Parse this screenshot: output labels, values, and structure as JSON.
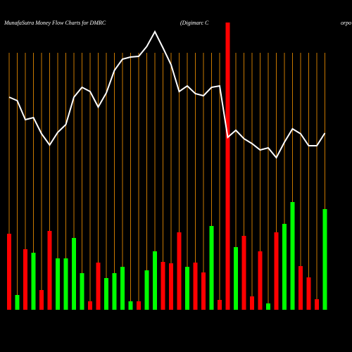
{
  "chart_data": {
    "type": "bar",
    "title": "MunafaSutra  Money Flow  Charts for DMRC",
    "subtitle": [
      "(Digimarc C",
      "orpo"
    ],
    "ylim": [
      0,
      440
    ],
    "grid_color": "#c87800",
    "bars": {
      "values": [
        108,
        21,
        86,
        81,
        28,
        112,
        73,
        73,
        102,
        52,
        12,
        67,
        45,
        52,
        61,
        12,
        12,
        56,
        83,
        68,
        66,
        110,
        61,
        67,
        53,
        119,
        14,
        408,
        89,
        105,
        19,
        83,
        9,
        110,
        122,
        153,
        62,
        46,
        15,
        143
      ],
      "colors": [
        "#ff0000",
        "#00ff00",
        "#ff0000",
        "#00ff00",
        "#ff0000",
        "#ff0000",
        "#00ff00",
        "#00ff00",
        "#00ff00",
        "#00ff00",
        "#ff0000",
        "#ff0000",
        "#00ff00",
        "#00ff00",
        "#00ff00",
        "#00ff00",
        "#ff0000",
        "#00ff00",
        "#00ff00",
        "#ff0000",
        "#ff0000",
        "#ff0000",
        "#00ff00",
        "#ff0000",
        "#ff0000",
        "#00ff00",
        "#ff0000",
        "#ff0000",
        "#00ff00",
        "#ff0000",
        "#ff0000",
        "#ff0000",
        "#00ff00",
        "#ff0000",
        "#00ff00",
        "#00ff00",
        "#ff0000",
        "#ff0000",
        "#ff0000",
        "#00ff00"
      ]
    },
    "line": {
      "color": "#ffffff",
      "values": [
        302,
        297,
        270,
        273,
        250,
        234,
        252,
        263,
        302,
        316,
        310,
        288,
        308,
        340,
        356,
        359,
        360,
        374,
        395,
        372,
        348,
        310,
        318,
        307,
        304,
        316,
        318,
        245,
        255,
        243,
        236,
        227,
        230,
        216,
        238,
        257,
        250,
        233,
        233,
        251
      ]
    }
  }
}
